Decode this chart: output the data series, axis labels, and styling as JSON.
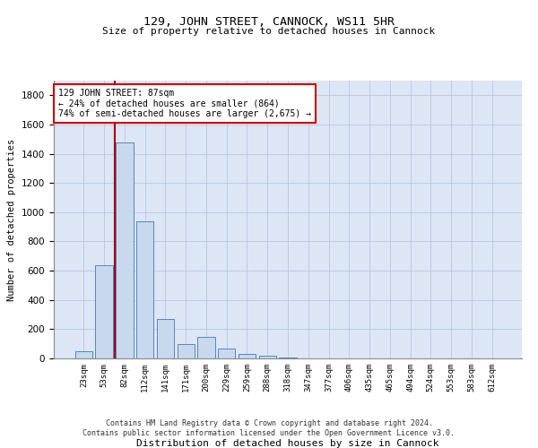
{
  "title": "129, JOHN STREET, CANNOCK, WS11 5HR",
  "subtitle": "Size of property relative to detached houses in Cannock",
  "xlabel": "Distribution of detached houses by size in Cannock",
  "ylabel": "Number of detached properties",
  "footer_line1": "Contains HM Land Registry data © Crown copyright and database right 2024.",
  "footer_line2": "Contains public sector information licensed under the Open Government Licence v3.0.",
  "annotation_line1": "129 JOHN STREET: 87sqm",
  "annotation_line2": "← 24% of detached houses are smaller (864)",
  "annotation_line3": "74% of semi-detached houses are larger (2,675) →",
  "bar_color": "#c8d9ee",
  "bar_edge_color": "#5585c5",
  "vertical_line_color": "#aa0000",
  "annotation_box_edge_color": "#cc0000",
  "grid_color": "#b8c8dc",
  "background_color": "#dce6f5",
  "categories": [
    "23sqm",
    "53sqm",
    "82sqm",
    "112sqm",
    "141sqm",
    "171sqm",
    "200sqm",
    "229sqm",
    "259sqm",
    "288sqm",
    "318sqm",
    "347sqm",
    "377sqm",
    "406sqm",
    "435sqm",
    "465sqm",
    "494sqm",
    "524sqm",
    "553sqm",
    "583sqm",
    "612sqm"
  ],
  "values": [
    50,
    640,
    1480,
    940,
    270,
    100,
    150,
    70,
    30,
    20,
    5,
    0,
    0,
    0,
    0,
    0,
    0,
    0,
    0,
    0,
    0
  ],
  "ylim": [
    0,
    1900
  ],
  "yticks": [
    0,
    200,
    400,
    600,
    800,
    1000,
    1200,
    1400,
    1600,
    1800
  ],
  "vline_x": 1.5
}
